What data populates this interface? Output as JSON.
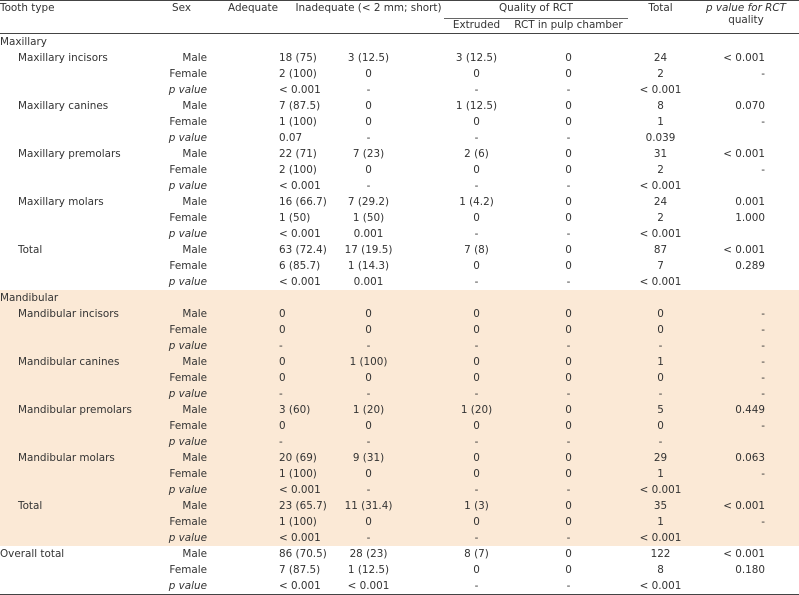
{
  "headers": {
    "tooth_type": "Tooth type",
    "sex": "Sex",
    "adequate": "Adequate",
    "inadequate": "Inadequate (< 2 mm; short)",
    "quality_group": "Quality of RCT",
    "extruded": "Extruded",
    "rct_pulp": "RCT in pulp chamber",
    "total": "Total",
    "p_rct_1": "p value for RCT",
    "p_rct_2": "quality"
  },
  "sections": [
    {
      "name": "Maxillary",
      "groups": [
        {
          "name": "Maxillary incisors",
          "rows": [
            {
              "sex": "Male",
              "adequate": "18 (75)",
              "inadequate": "3 (12.5)",
              "extruded": "3 (12.5)",
              "rct": "0",
              "total": "24",
              "p": "< 0.001"
            },
            {
              "sex": "Female",
              "adequate": "2 (100)",
              "inadequate": "0",
              "extruded": "0",
              "rct": "0",
              "total": "2",
              "p": "-"
            },
            {
              "sex": "p value",
              "adequate": "< 0.001",
              "inadequate": "-",
              "extruded": "-",
              "rct": "-",
              "total": "< 0.001",
              "p": ""
            }
          ]
        },
        {
          "name": "Maxillary canines",
          "rows": [
            {
              "sex": "Male",
              "adequate": "7 (87.5)",
              "inadequate": "0",
              "extruded": "1 (12.5)",
              "rct": "0",
              "total": "8",
              "p": "0.070"
            },
            {
              "sex": "Female",
              "adequate": "1 (100)",
              "inadequate": "0",
              "extruded": "0",
              "rct": "0",
              "total": "1",
              "p": "-"
            },
            {
              "sex": "p value",
              "adequate": "0.07",
              "inadequate": "-",
              "extruded": "-",
              "rct": "-",
              "total": "0.039",
              "p": ""
            }
          ]
        },
        {
          "name": "Maxillary premolars",
          "rows": [
            {
              "sex": "Male",
              "adequate": "22 (71)",
              "inadequate": "7 (23)",
              "extruded": "2 (6)",
              "rct": "0",
              "total": "31",
              "p": "< 0.001"
            },
            {
              "sex": "Female",
              "adequate": "2 (100)",
              "inadequate": "0",
              "extruded": "0",
              "rct": "0",
              "total": "2",
              "p": "-"
            },
            {
              "sex": "p value",
              "adequate": "< 0.001",
              "inadequate": "-",
              "extruded": "-",
              "rct": "-",
              "total": "< 0.001",
              "p": ""
            }
          ]
        },
        {
          "name": "Maxillary molars",
          "rows": [
            {
              "sex": "Male",
              "adequate": "16 (66.7)",
              "inadequate": "7 (29.2)",
              "extruded": "1 (4.2)",
              "rct": "0",
              "total": "24",
              "p": "0.001"
            },
            {
              "sex": "Female",
              "adequate": "1 (50)",
              "inadequate": "1 (50)",
              "extruded": "0",
              "rct": "0",
              "total": "2",
              "p": "1.000"
            },
            {
              "sex": "p value",
              "adequate": "< 0.001",
              "inadequate": "0.001",
              "extruded": "-",
              "rct": "-",
              "total": "< 0.001",
              "p": ""
            }
          ]
        },
        {
          "name": "Total",
          "rows": [
            {
              "sex": "Male",
              "adequate": "63 (72.4)",
              "inadequate": "17 (19.5)",
              "extruded": "7 (8)",
              "rct": "0",
              "total": "87",
              "p": "< 0.001"
            },
            {
              "sex": "Female",
              "adequate": "6 (85.7)",
              "inadequate": "1 (14.3)",
              "extruded": "0",
              "rct": "0",
              "total": "7",
              "p": "0.289"
            },
            {
              "sex": "p value",
              "adequate": "< 0.001",
              "inadequate": "0.001",
              "extruded": "-",
              "rct": "-",
              "total": "< 0.001",
              "p": ""
            }
          ]
        }
      ]
    },
    {
      "name": "Mandibular",
      "groups": [
        {
          "name": "Mandibular incisors",
          "rows": [
            {
              "sex": "Male",
              "adequate": "0",
              "inadequate": "0",
              "extruded": "0",
              "rct": "0",
              "total": "0",
              "p": "-"
            },
            {
              "sex": "Female",
              "adequate": "0",
              "inadequate": "0",
              "extruded": "0",
              "rct": "0",
              "total": "0",
              "p": "-"
            },
            {
              "sex": "p value",
              "adequate": "-",
              "inadequate": "-",
              "extruded": "-",
              "rct": "-",
              "total": "-",
              "p": "-"
            }
          ]
        },
        {
          "name": "Mandibular canines",
          "rows": [
            {
              "sex": "Male",
              "adequate": "0",
              "inadequate": "1 (100)",
              "extruded": "0",
              "rct": "0",
              "total": "1",
              "p": "-"
            },
            {
              "sex": "Female",
              "adequate": "0",
              "inadequate": "0",
              "extruded": "0",
              "rct": "0",
              "total": "0",
              "p": "-"
            },
            {
              "sex": "p value",
              "adequate": "-",
              "inadequate": "-",
              "extruded": "-",
              "rct": "-",
              "total": "-",
              "p": "-"
            }
          ]
        },
        {
          "name": "Mandibular premolars",
          "rows": [
            {
              "sex": "Male",
              "adequate": "3 (60)",
              "inadequate": "1 (20)",
              "extruded": "1 (20)",
              "rct": "0",
              "total": "5",
              "p": "0.449"
            },
            {
              "sex": "Female",
              "adequate": "0",
              "inadequate": "0",
              "extruded": "0",
              "rct": "0",
              "total": "0",
              "p": "-"
            },
            {
              "sex": "p value",
              "adequate": "-",
              "inadequate": "-",
              "extruded": "-",
              "rct": "-",
              "total": "-",
              "p": ""
            }
          ]
        },
        {
          "name": "Mandibular molars",
          "rows": [
            {
              "sex": "Male",
              "adequate": "20 (69)",
              "inadequate": "9 (31)",
              "extruded": "0",
              "rct": "0",
              "total": "29",
              "p": "0.063"
            },
            {
              "sex": "Female",
              "adequate": "1 (100)",
              "inadequate": "0",
              "extruded": "0",
              "rct": "0",
              "total": "1",
              "p": "-"
            },
            {
              "sex": "p value",
              "adequate": "< 0.001",
              "inadequate": "-",
              "extruded": "-",
              "rct": "-",
              "total": "< 0.001",
              "p": ""
            }
          ]
        },
        {
          "name": "Total",
          "rows": [
            {
              "sex": "Male",
              "adequate": "23 (65.7)",
              "inadequate": "11 (31.4)",
              "extruded": "1 (3)",
              "rct": "0",
              "total": "35",
              "p": "< 0.001"
            },
            {
              "sex": "Female",
              "adequate": "1 (100)",
              "inadequate": "0",
              "extruded": "0",
              "rct": "0",
              "total": "1",
              "p": "-"
            },
            {
              "sex": "p value",
              "adequate": "< 0.001",
              "inadequate": "-",
              "extruded": "-",
              "rct": "-",
              "total": "< 0.001",
              "p": ""
            }
          ]
        }
      ]
    }
  ],
  "overall": {
    "name": "Overall total",
    "rows": [
      {
        "sex": "Male",
        "adequate": "86 (70.5)",
        "inadequate": "28 (23)",
        "extruded": "8 (7)",
        "rct": "0",
        "total": "122",
        "p": "< 0.001"
      },
      {
        "sex": "Female",
        "adequate": "7 (87.5)",
        "inadequate": "1 (12.5)",
        "extruded": "0",
        "rct": "0",
        "total": "8",
        "p": "0.180"
      },
      {
        "sex": "p value",
        "adequate": "< 0.001",
        "inadequate": "< 0.001",
        "extruded": "-",
        "rct": "-",
        "total": "< 0.001",
        "p": ""
      }
    ]
  }
}
